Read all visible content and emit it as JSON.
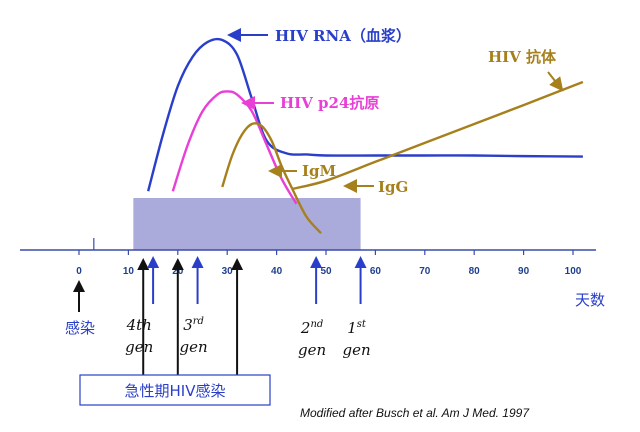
{
  "chart_data": {
    "type": "line",
    "xlabel": "天数",
    "xlim": [
      0,
      100
    ],
    "xticks": [
      0,
      10,
      20,
      30,
      40,
      50,
      60,
      70,
      80,
      90,
      100
    ],
    "series": [
      {
        "name": "HIV RNA（血浆）",
        "color": "#2a3fc9",
        "x": [
          14,
          17,
          20,
          23,
          26,
          29,
          32,
          35,
          38,
          42,
          46,
          50,
          60,
          70,
          80,
          90,
          102
        ],
        "y": [
          0.28,
          0.55,
          0.78,
          0.92,
          0.99,
          1.0,
          0.93,
          0.72,
          0.52,
          0.46,
          0.455,
          0.45,
          0.45,
          0.45,
          0.45,
          0.447,
          0.445
        ]
      },
      {
        "name": "HIV p24抗原",
        "color": "#e83fd6",
        "x": [
          19,
          22,
          25,
          28,
          30,
          32,
          35,
          38,
          41,
          44
        ],
        "y": [
          0.28,
          0.5,
          0.66,
          0.74,
          0.755,
          0.74,
          0.66,
          0.5,
          0.34,
          0.22
        ]
      },
      {
        "name": "IgM",
        "color": "#a6801c",
        "x": [
          29,
          31,
          33,
          35,
          37,
          39,
          41,
          43,
          46,
          49
        ],
        "y": [
          0.3,
          0.45,
          0.55,
          0.6,
          0.59,
          0.52,
          0.4,
          0.3,
          0.16,
          0.08
        ]
      },
      {
        "name": "IgG",
        "color": "#a6801c",
        "x": [
          43,
          50,
          60,
          70,
          80,
          90,
          102
        ],
        "y": [
          0.29,
          0.33,
          0.42,
          0.51,
          0.6,
          0.69,
          0.8
        ]
      }
    ],
    "labels": {
      "hiv_antibody": "HIV 抗体",
      "infection": "感染",
      "acute": "急性期HIV感染",
      "caption": "Modified after Busch et al.  Am J Med. 1997"
    },
    "band": {
      "x_start": 11,
      "x_end": 57
    },
    "generations": [
      {
        "label": "4th",
        "suffix": "",
        "x": 13
      },
      {
        "label": "3",
        "suffix": "rd",
        "x": 24
      },
      {
        "label": "2",
        "suffix": "nd",
        "x": 48
      },
      {
        "label": "1",
        "suffix": "st",
        "x": 57
      }
    ],
    "gen_word": "gen",
    "window_markers": [
      13,
      20,
      32
    ],
    "infection_marker": 0,
    "blue_markers": [
      15,
      24,
      48,
      57
    ]
  }
}
